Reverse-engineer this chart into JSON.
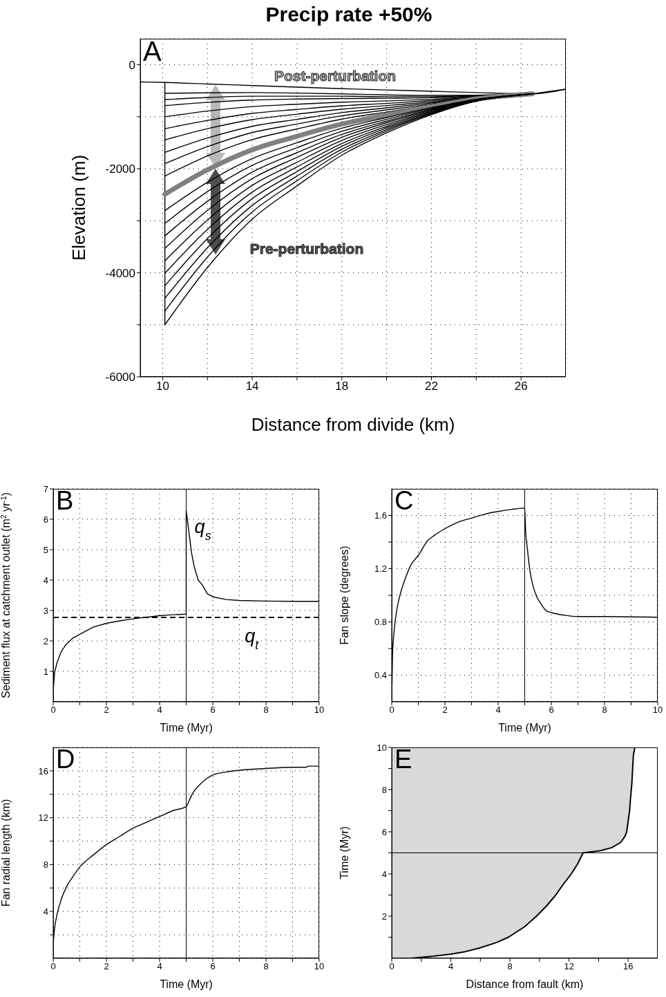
{
  "chart_data": [
    {
      "type": "line",
      "title": "Precip rate +50%",
      "xlabel": "Distance from divide (km)",
      "ylabel": "Elevation (m)",
      "xlim": [
        9,
        28
      ],
      "xticks": [
        10,
        {
          "value": 12,
          "label": null
        },
        14,
        {
          "value": 16,
          "label": null
        },
        18,
        {
          "value": 20,
          "label": null
        },
        22,
        {
          "value": 24,
          "label": null
        },
        26
      ],
      "ylim": [
        -6000,
        500
      ],
      "yticks": [
        -6000,
        {
          "value": -5000,
          "label": null
        },
        -4000,
        {
          "value": -3000,
          "label": null
        },
        -2000,
        {
          "value": -1000,
          "label": null
        },
        0
      ],
      "grid": true,
      "annotations": [
        "A",
        "Post-perturbation",
        "Pre-perturbation"
      ],
      "x": [
        10.1,
        12,
        14,
        16,
        18,
        20,
        22,
        24,
        26.5
      ],
      "series": [
        {
          "color": "#000000",
          "x": [
            9,
            10.1,
            12,
            14,
            16,
            18,
            20,
            22,
            24,
            26.5,
            28
          ],
          "values": [
            -330,
            -340,
            -370,
            -400,
            -430,
            -460,
            -485,
            -510,
            -535,
            -560,
            -470
          ]
        },
        {
          "color": "#000000",
          "x": [
            10.1,
            10.1
          ],
          "values": [
            -340,
            -5000
          ]
        },
        {
          "color": "#000000",
          "values": [
            -550,
            -540,
            -535,
            -545,
            -560,
            -580,
            -590,
            -585,
            -560
          ]
        },
        {
          "color": "#000000",
          "values": [
            -670,
            -630,
            -605,
            -605,
            -605,
            -615,
            -615,
            -590,
            -560
          ]
        },
        {
          "color": "#000000",
          "values": [
            -785,
            -725,
            -680,
            -660,
            -650,
            -645,
            -635,
            -600,
            -560
          ]
        },
        {
          "color": "#000000",
          "values": [
            -1000,
            -890,
            -805,
            -760,
            -720,
            -695,
            -665,
            -610,
            -560
          ]
        },
        {
          "color": "#000000",
          "values": [
            -1230,
            -1070,
            -935,
            -860,
            -790,
            -745,
            -690,
            -620,
            -560
          ]
        },
        {
          "color": "#000000",
          "values": [
            -1445,
            -1230,
            -1055,
            -950,
            -855,
            -785,
            -715,
            -630,
            -560
          ]
        },
        {
          "color": "#000000",
          "values": [
            -1685,
            -1410,
            -1185,
            -1050,
            -920,
            -830,
            -735,
            -635,
            -560
          ]
        },
        {
          "color": "#000000",
          "values": [
            -1900,
            -1575,
            -1305,
            -1140,
            -980,
            -870,
            -755,
            -640,
            -560
          ]
        },
        {
          "color": "#000000",
          "values": [
            -2140,
            -1755,
            -1440,
            -1235,
            -1045,
            -910,
            -775,
            -650,
            -560
          ]
        },
        {
          "color": "#808080",
          "values": [
            -2490,
            -2020,
            -1635,
            -1375,
            -1140,
            -965,
            -805,
            -655,
            -560
          ]
        },
        {
          "color": "#000000",
          "values": [
            -2805,
            -2260,
            -1805,
            -1500,
            -1220,
            -1015,
            -825,
            -665,
            -560
          ]
        },
        {
          "color": "#000000",
          "values": [
            -3050,
            -2440,
            -1935,
            -1595,
            -1280,
            -1050,
            -845,
            -670,
            -560
          ]
        },
        {
          "color": "#000000",
          "values": [
            -3290,
            -2625,
            -2065,
            -1690,
            -1340,
            -1085,
            -860,
            -675,
            -560
          ]
        },
        {
          "color": "#000000",
          "values": [
            -3530,
            -2800,
            -2190,
            -1780,
            -1395,
            -1115,
            -875,
            -680,
            -560
          ]
        },
        {
          "color": "#000000",
          "values": [
            -3770,
            -2985,
            -2320,
            -1875,
            -1455,
            -1150,
            -890,
            -685,
            -560
          ]
        },
        {
          "color": "#000000",
          "values": [
            -4010,
            -3165,
            -2450,
            -1965,
            -1515,
            -1185,
            -905,
            -690,
            -560
          ]
        },
        {
          "color": "#000000",
          "values": [
            -4250,
            -3340,
            -2575,
            -2055,
            -1570,
            -1215,
            -920,
            -695,
            -560
          ]
        },
        {
          "color": "#000000",
          "values": [
            -4490,
            -3520,
            -2705,
            -2140,
            -1625,
            -1245,
            -935,
            -698,
            -560
          ]
        },
        {
          "color": "#000000",
          "values": [
            -4735,
            -3700,
            -2830,
            -2230,
            -1680,
            -1275,
            -945,
            -700,
            -560
          ]
        },
        {
          "color": "#000000",
          "x": [
            10.1,
            12,
            14,
            16,
            18,
            20,
            22,
            24,
            26.5,
            28
          ],
          "values": [
            -5000,
            -3900,
            -2970,
            -2330,
            -1740,
            -1310,
            -960,
            -700,
            -560,
            -470
          ]
        }
      ]
    },
    {
      "type": "line",
      "xlabel": "Time (Myr)",
      "ylabel": "Sediment flux at catchment outlet (m$^{2}$ yr$^{-1}$)",
      "xlim": [
        0,
        10
      ],
      "xticks": [
        0,
        {
          "value": 1,
          "label": null
        },
        2,
        {
          "value": 3,
          "label": null
        },
        4,
        {
          "value": 5,
          "label": null
        },
        6,
        {
          "value": 7,
          "label": null
        },
        8,
        {
          "value": 9,
          "label": null
        },
        10
      ],
      "ylim": [
        0,
        7
      ],
      "yticks": [
        1,
        2,
        3,
        4,
        5,
        6,
        7
      ],
      "grid": true,
      "annotations": [
        "B"
      ],
      "ref_lines": [
        {
          "axis": "x",
          "value": 5,
          "color": "#000000"
        },
        {
          "axis": "y",
          "value": 2.77,
          "label": "q$_{t}$",
          "color": "#000000",
          "line_style": "dashed"
        }
      ],
      "series": [
        {
          "name": "q$_{s}$",
          "color": "#000000",
          "x": [
            0,
            0.05,
            0.15,
            0.3,
            0.5,
            0.75,
            1,
            1.5,
            2,
            2.5,
            3,
            3.5,
            4,
            4.5,
            5,
            5,
            5.1,
            5.2,
            5.3,
            5.45,
            5.6,
            5.8,
            6,
            6.5,
            7,
            8,
            9,
            10
          ],
          "values": [
            0.35,
            0.95,
            1.3,
            1.65,
            1.9,
            2.1,
            2.22,
            2.45,
            2.58,
            2.66,
            2.73,
            2.78,
            2.83,
            2.86,
            2.88,
            6.28,
            5.6,
            4.9,
            4.45,
            4.0,
            3.85,
            3.55,
            3.45,
            3.36,
            3.33,
            3.31,
            3.3,
            3.3
          ]
        }
      ]
    },
    {
      "type": "line",
      "xlabel": "Time (Myr)",
      "ylabel": "Fan slope (degrees)",
      "xlim": [
        0,
        10
      ],
      "xticks": [
        0,
        {
          "value": 1,
          "label": null
        },
        2,
        {
          "value": 3,
          "label": null
        },
        4,
        {
          "value": 5,
          "label": null
        },
        6,
        {
          "value": 7,
          "label": null
        },
        8,
        {
          "value": 9,
          "label": null
        },
        10
      ],
      "ylim": [
        0.2,
        1.8
      ],
      "yticks": [
        0.4,
        {
          "value": 0.6,
          "label": null
        },
        0.8,
        {
          "value": 1.0,
          "label": null
        },
        1.2,
        {
          "value": 1.4,
          "label": null
        },
        1.6
      ],
      "grid": true,
      "annotations": [
        "C"
      ],
      "ref_lines": [
        {
          "axis": "x",
          "value": 5,
          "color": "#000000"
        }
      ],
      "series": [
        {
          "color": "#000000",
          "x": [
            0,
            0.03,
            0.1,
            0.2,
            0.35,
            0.5,
            0.7,
            1,
            1.35,
            1.6,
            2,
            2.5,
            3,
            3.5,
            4,
            4.5,
            5,
            5.03,
            5.1,
            5.2,
            5.3,
            5.45,
            5.6,
            5.8,
            6,
            6.5,
            7,
            8,
            10
          ],
          "values": [
            0.22,
            0.55,
            0.75,
            0.9,
            1.03,
            1.12,
            1.22,
            1.3,
            1.41,
            1.45,
            1.5,
            1.55,
            1.58,
            1.61,
            1.63,
            1.645,
            1.655,
            1.5,
            1.35,
            1.18,
            1.08,
            0.99,
            0.94,
            0.885,
            0.87,
            0.85,
            0.84,
            0.84,
            0.835
          ]
        }
      ]
    },
    {
      "type": "line",
      "xlabel": "Time (Myr)",
      "ylabel": "Fan radial length (km)",
      "xlim": [
        0,
        10
      ],
      "xticks": [
        0,
        {
          "value": 1,
          "label": null
        },
        2,
        {
          "value": 3,
          "label": null
        },
        4,
        {
          "value": 5,
          "label": null
        },
        6,
        {
          "value": 7,
          "label": null
        },
        8,
        {
          "value": 9,
          "label": null
        },
        10
      ],
      "ylim": [
        0,
        18
      ],
      "yticks": [
        {
          "value": 2,
          "label": null
        },
        4,
        {
          "value": 6,
          "label": null
        },
        8,
        {
          "value": 10,
          "label": null
        },
        12,
        {
          "value": 14,
          "label": null
        },
        16
      ],
      "grid": true,
      "annotations": [
        "D"
      ],
      "ref_lines": [
        {
          "axis": "x",
          "value": 5,
          "color": "#000000"
        }
      ],
      "series": [
        {
          "color": "#000000",
          "x": [
            0,
            0.05,
            0.15,
            0.3,
            0.5,
            0.75,
            1,
            1.5,
            2,
            2.5,
            3,
            3.5,
            4,
            4.5,
            5,
            5.1,
            5.25,
            5.5,
            5.75,
            6,
            6.5,
            7,
            8,
            9,
            9.5,
            9.6,
            10
          ],
          "values": [
            1.3,
            2.5,
            3.8,
            5.0,
            6.1,
            7.0,
            7.8,
            8.8,
            9.7,
            10.4,
            11.1,
            11.6,
            12.1,
            12.6,
            12.95,
            13.4,
            14.1,
            14.8,
            15.3,
            15.65,
            15.9,
            16.05,
            16.2,
            16.3,
            16.3,
            16.4,
            16.4
          ]
        }
      ]
    },
    {
      "type": "area",
      "orientation": "horizontal",
      "xlabel": "Distance from fault (km)",
      "ylabel": "Time (Myr)",
      "xlim": [
        0,
        18
      ],
      "xticks": [
        0,
        {
          "value": 2,
          "label": null
        },
        4,
        {
          "value": 6,
          "label": null
        },
        8,
        {
          "value": 10,
          "label": null
        },
        12,
        {
          "value": 14,
          "label": null
        },
        16
      ],
      "ylim": [
        0,
        10
      ],
      "yticks": [
        {
          "value": 1,
          "label": null
        },
        2,
        {
          "value": 3,
          "label": null
        },
        4,
        {
          "value": 5,
          "label": null
        },
        6,
        {
          "value": 7,
          "label": null
        },
        8,
        {
          "value": 9,
          "label": null
        },
        10
      ],
      "annotations": [
        "E"
      ],
      "ref_lines": [
        {
          "axis": "y",
          "value": 5,
          "color": "#000000"
        }
      ],
      "series": [
        {
          "color": "#d9d9d9",
          "x": [
            0,
            0.1,
            0.2,
            0.3,
            0.5,
            0.75,
            1,
            1.5,
            2,
            2.5,
            3,
            3.5,
            4,
            4.5,
            5,
            5.1,
            5.25,
            5.5,
            5.8,
            6,
            6.5,
            7,
            7.5,
            8.3,
            9.6,
            10
          ],
          "values": [
            1.3,
            2.8,
            4.0,
            4.9,
            6.0,
            7.1,
            7.9,
            9.0,
            9.8,
            10.5,
            11.1,
            11.6,
            12.15,
            12.6,
            12.95,
            14.1,
            14.9,
            15.5,
            15.8,
            15.9,
            16.0,
            16.1,
            16.15,
            16.25,
            16.35,
            16.45
          ]
        }
      ]
    }
  ]
}
